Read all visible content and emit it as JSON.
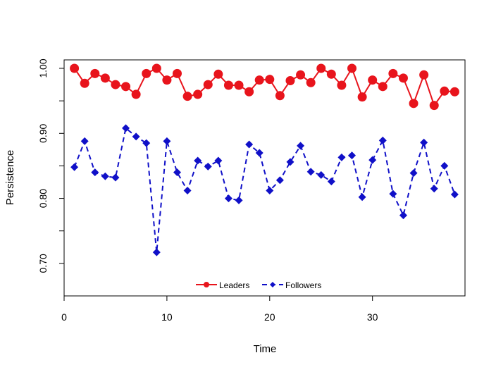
{
  "chart_data": {
    "type": "line",
    "title": "",
    "xlabel": "Time",
    "ylabel": "Persistence",
    "xlim": [
      0,
      39
    ],
    "ylim": [
      0.65,
      1.013
    ],
    "x_ticks": [
      0,
      10,
      20,
      30
    ],
    "x_tick_labels": [
      "0",
      "10",
      "20",
      "30"
    ],
    "y_ticks": [
      0.7,
      0.75,
      0.8,
      0.85,
      0.9,
      0.95,
      1.0
    ],
    "y_tick_labels": [
      "0.70",
      "",
      "0.80",
      "",
      "0.90",
      "",
      "1.00"
    ],
    "grid": false,
    "legend_position": "bottom-center",
    "x": [
      1,
      2,
      3,
      4,
      5,
      6,
      7,
      8,
      9,
      10,
      11,
      12,
      13,
      14,
      15,
      16,
      17,
      18,
      19,
      20,
      21,
      22,
      23,
      24,
      25,
      26,
      27,
      28,
      29,
      30,
      31,
      32,
      33,
      34,
      35,
      36,
      37,
      38
    ],
    "series": [
      {
        "name": "Leaders",
        "color": "#e8141c",
        "line_style": "solid",
        "marker": "circle",
        "values": [
          1.0,
          0.977,
          0.992,
          0.985,
          0.975,
          0.972,
          0.96,
          0.992,
          1.0,
          0.982,
          0.992,
          0.957,
          0.96,
          0.975,
          0.991,
          0.974,
          0.974,
          0.964,
          0.982,
          0.983,
          0.958,
          0.981,
          0.99,
          0.978,
          1.0,
          0.991,
          0.974,
          1.0,
          0.956,
          0.982,
          0.972,
          0.992,
          0.985,
          0.946,
          0.99,
          0.943,
          0.965,
          0.964
        ]
      },
      {
        "name": "Followers",
        "color": "#1010c8",
        "line_style": "dashed",
        "marker": "diamond",
        "values": [
          0.848,
          0.888,
          0.84,
          0.834,
          0.832,
          0.908,
          0.895,
          0.885,
          0.717,
          0.888,
          0.84,
          0.812,
          0.858,
          0.849,
          0.858,
          0.8,
          0.797,
          0.883,
          0.87,
          0.812,
          0.828,
          0.856,
          0.881,
          0.841,
          0.836,
          0.826,
          0.863,
          0.866,
          0.802,
          0.859,
          0.889,
          0.807,
          0.774,
          0.839,
          0.886,
          0.815,
          0.85,
          0.806
        ]
      }
    ]
  }
}
